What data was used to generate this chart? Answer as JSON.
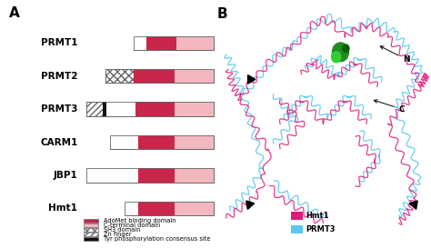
{
  "panel_A_label": "A",
  "panel_B_label": "B",
  "proteins": [
    "PRMT1",
    "PRMT2",
    "PRMT3",
    "CARM1",
    "JBP1",
    "Hmt1"
  ],
  "bar_height": 0.42,
  "y_positions": [
    6.2,
    5.2,
    4.2,
    3.2,
    2.2,
    1.2
  ],
  "colors": {
    "adomet": "#C8264A",
    "cterminal": "#F2B8BE",
    "tyr": "#111111",
    "white": "#FFFFFF",
    "border": "#666666"
  },
  "legend_labels": [
    "AdoMet binding domain",
    "C-terminal domain",
    "SH3 domain",
    "Zn finger",
    "Tyr phosphorylation consensus site"
  ],
  "background": "#FFFFFF",
  "color_hmt1": "#E0197A",
  "color_prmt3": "#5BC8F0"
}
